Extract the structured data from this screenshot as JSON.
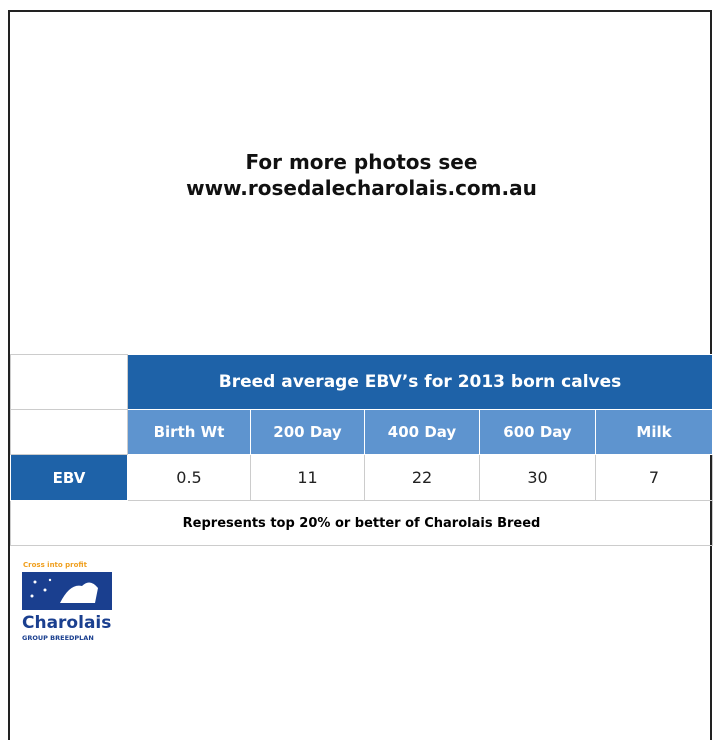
{
  "photos": {
    "line1": "For more photos see",
    "line2": "www.rosedalecharolais.com.au"
  },
  "table": {
    "title": "Breed average EBV’s for 2013 born calves",
    "columns": [
      "Birth Wt",
      "200 Day",
      "400 Day",
      "600 Day",
      "Milk"
    ],
    "row_label": "EBV",
    "values": [
      "0.5",
      "11",
      "22",
      "30",
      "7"
    ],
    "note": "Represents top 20% or better of Charolais Breed"
  },
  "logo": {
    "tagline": "Cross into profit",
    "name": "Charolais",
    "subtitle": "GROUP BREEDPLAN"
  }
}
